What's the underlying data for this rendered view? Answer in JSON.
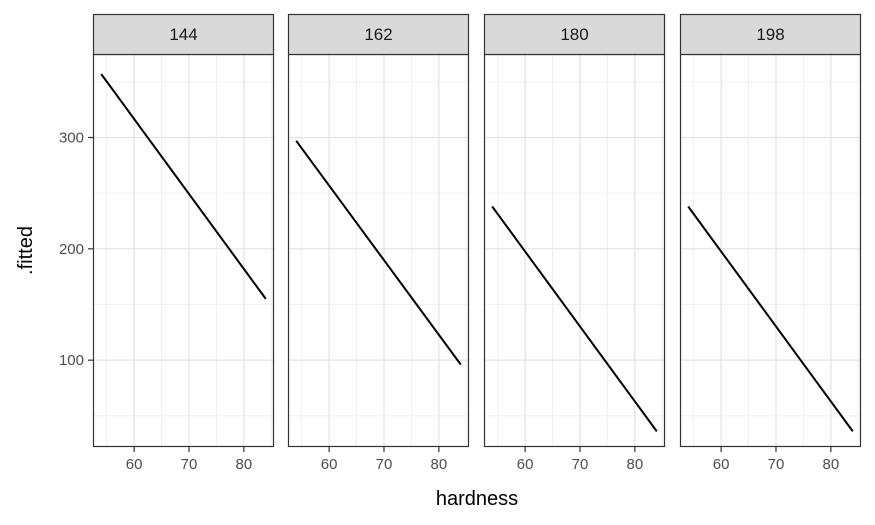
{
  "chart_data": {
    "type": "line",
    "layout": "faceted",
    "xlabel": "hardness",
    "ylabel": ".fitted",
    "xlim": [
      52.5,
      85.5
    ],
    "ylim": [
      22,
      375
    ],
    "x_ticks": [
      60,
      70,
      80
    ],
    "x_tick_labels": [
      "60",
      "70",
      "80"
    ],
    "y_ticks": [
      100,
      200,
      300
    ],
    "y_tick_labels": [
      "100",
      "200",
      "300"
    ],
    "grid": true,
    "line_color": "#000000",
    "panels": [
      {
        "label": "144",
        "x": [
          54,
          84
        ],
        "y": [
          357,
          155
        ]
      },
      {
        "label": "162",
        "x": [
          54,
          84
        ],
        "y": [
          297,
          96
        ]
      },
      {
        "label": "180",
        "x": [
          54,
          84
        ],
        "y": [
          238,
          36
        ]
      },
      {
        "label": "198",
        "x": [
          54,
          84
        ],
        "y": [
          238,
          36
        ]
      }
    ]
  }
}
